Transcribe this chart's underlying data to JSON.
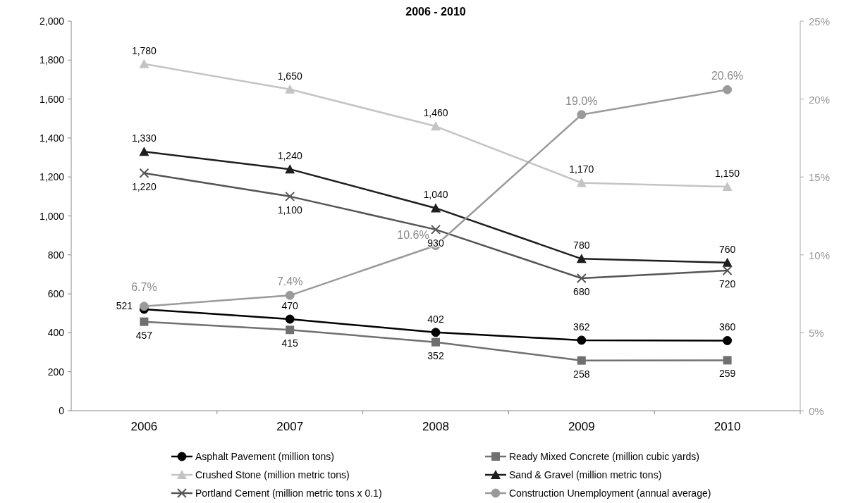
{
  "chart_data": {
    "type": "line",
    "title": "2006 - 2010",
    "categories": [
      "2006",
      "2007",
      "2008",
      "2009",
      "2010"
    ],
    "ylim": [
      0,
      2000
    ],
    "yticks": [
      0,
      200,
      400,
      600,
      800,
      {
        "value": 1000,
        "label": "1,000"
      },
      {
        "value": 1200,
        "label": "1,200"
      },
      {
        "value": 1400,
        "label": "1,400"
      },
      {
        "value": 1600,
        "label": "1,600"
      },
      {
        "value": 1800,
        "label": "1,800"
      },
      {
        "value": 2000,
        "label": "2,000"
      }
    ],
    "y2lim": [
      0,
      25
    ],
    "y2ticks": [
      {
        "value": 0,
        "label": "0%"
      },
      {
        "value": 5,
        "label": "5%"
      },
      {
        "value": 10,
        "label": "10%"
      },
      {
        "value": 15,
        "label": "15%"
      },
      {
        "value": 20,
        "label": "20%"
      },
      {
        "value": 25,
        "label": "25%"
      }
    ],
    "legend": "bottom",
    "series": [
      {
        "name": "Asphalt Pavement (million tons)",
        "color": "#000000",
        "marker": "circle",
        "values": [
          521,
          470,
          402,
          362,
          360
        ],
        "value_labels": [
          "521",
          "470",
          "402",
          "362",
          "360"
        ]
      },
      {
        "name": "Ready Mixed Concrete (million cubic yards)",
        "color": "#707070",
        "marker": "square",
        "values": [
          457,
          415,
          352,
          258,
          259
        ],
        "value_labels": [
          "457",
          "415",
          "352",
          "258",
          "259"
        ]
      },
      {
        "name": "Crushed Stone (million metric tons)",
        "color": "#c4c4c4",
        "marker": "triangle",
        "values": [
          1780,
          1650,
          1460,
          1170,
          1150
        ],
        "value_labels": [
          "1,780",
          "1,650",
          "1,460",
          "1,170",
          "1,150"
        ]
      },
      {
        "name": "Sand & Gravel (million metric tons)",
        "color": "#1e1e1e",
        "marker": "triangle",
        "values": [
          1330,
          1240,
          1040,
          780,
          760
        ],
        "value_labels": [
          "1,330",
          "1,240",
          "1,040",
          "780",
          "760"
        ]
      },
      {
        "name": "Portland Cement (million metric tons x 0.1)",
        "color": "#555555",
        "marker": "cross",
        "values": [
          1220,
          1100,
          930,
          680,
          720
        ],
        "value_labels": [
          "1,220",
          "1,100",
          "930",
          "680",
          "720"
        ]
      },
      {
        "name": "Construction Unemployment (annual average)",
        "color": "#9a9a9a",
        "marker": "circle",
        "axis": "y2",
        "values": [
          6.7,
          7.4,
          10.6,
          19.0,
          20.6
        ],
        "value_labels": [
          "6.7%",
          "7.4%",
          "10.6%",
          "19.0%",
          "20.6%"
        ]
      }
    ]
  }
}
